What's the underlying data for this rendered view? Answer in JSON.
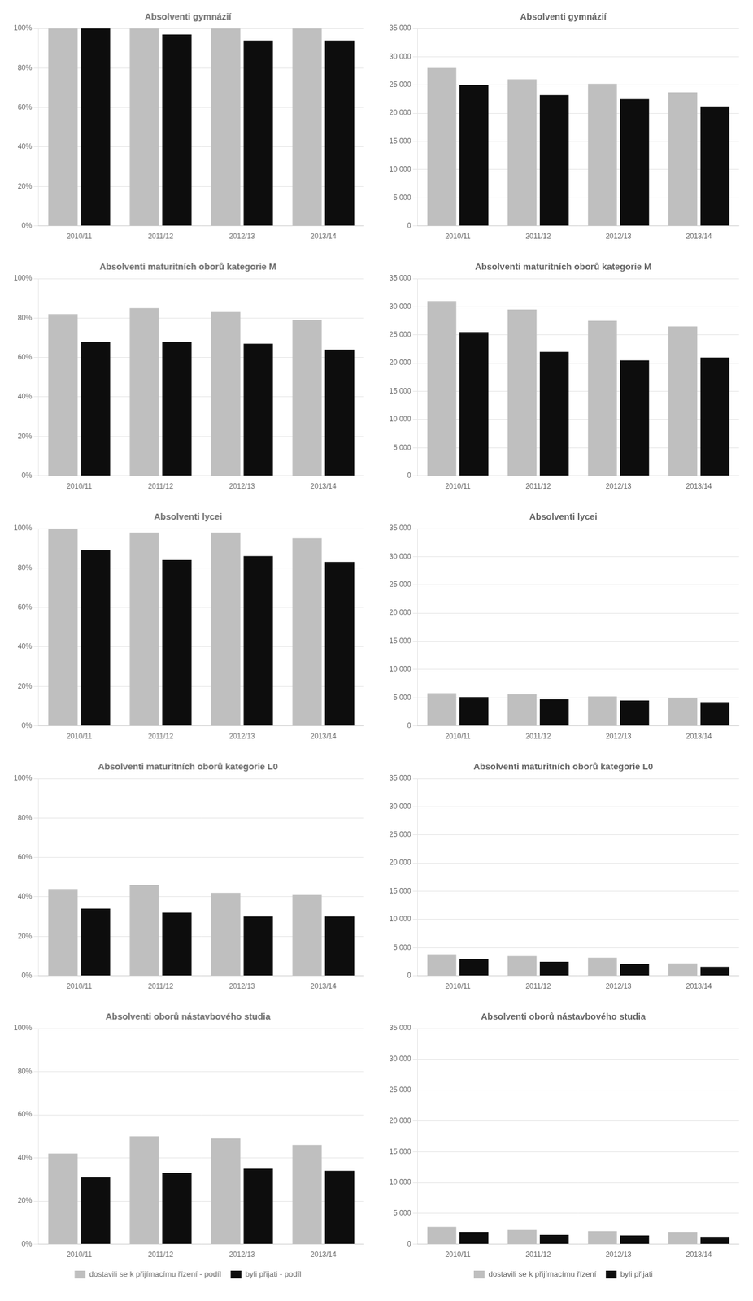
{
  "chart_data": [
    {
      "type": "bar",
      "title": "Absolventi gymnázií",
      "categories": [
        "2010/11",
        "2011/12",
        "2012/13",
        "2013/14"
      ],
      "series": [
        {
          "name": "dostavili se k přijímacímu řízení - podíl",
          "color": "#bfbfbf",
          "values": [
            100,
            100,
            100,
            100
          ]
        },
        {
          "name": "byli přijati - podíl",
          "color": "#0d0d0d",
          "values": [
            100,
            97,
            94,
            94
          ]
        }
      ],
      "ylim": [
        0,
        100
      ],
      "yticks": [
        {
          "value": 0,
          "label": "0%"
        },
        {
          "value": 20,
          "label": "20%"
        },
        {
          "value": 40,
          "label": "40%"
        },
        {
          "value": 60,
          "label": "60%"
        },
        {
          "value": 80,
          "label": "80%"
        },
        {
          "value": 100,
          "label": "100%"
        }
      ],
      "grid": true
    },
    {
      "type": "bar",
      "title": "Absolventi gymnázií",
      "categories": [
        "2010/11",
        "2011/12",
        "2012/13",
        "2013/14"
      ],
      "series": [
        {
          "name": "dostavili se k přijímacímu řízení",
          "color": "#bfbfbf",
          "values": [
            28000,
            26000,
            25200,
            23700
          ]
        },
        {
          "name": "byli přijati",
          "color": "#0d0d0d",
          "values": [
            25000,
            23200,
            22500,
            21200
          ]
        }
      ],
      "ylim": [
        0,
        35000
      ],
      "yticks": [
        0,
        {
          "value": 5000,
          "label": "5 000"
        },
        {
          "value": 10000,
          "label": "10 000"
        },
        {
          "value": 15000,
          "label": "15 000"
        },
        {
          "value": 20000,
          "label": "20 000"
        },
        {
          "value": 25000,
          "label": "25 000"
        },
        {
          "value": 30000,
          "label": "30 000"
        },
        {
          "value": 35000,
          "label": "35 000"
        }
      ],
      "grid": true
    },
    {
      "type": "bar",
      "title": "Absolventi maturitních oborů kategorie M",
      "categories": [
        "2010/11",
        "2011/12",
        "2012/13",
        "2013/14"
      ],
      "series": [
        {
          "name": "dostavili se k přijímacímu řízení - podíl",
          "color": "#bfbfbf",
          "values": [
            82,
            85,
            83,
            79
          ]
        },
        {
          "name": "byli přijati - podíl",
          "color": "#0d0d0d",
          "values": [
            68,
            68,
            67,
            64
          ]
        }
      ],
      "ylim": [
        0,
        100
      ],
      "yticks": [
        {
          "value": 0,
          "label": "0%"
        },
        {
          "value": 20,
          "label": "20%"
        },
        {
          "value": 40,
          "label": "40%"
        },
        {
          "value": 60,
          "label": "60%"
        },
        {
          "value": 80,
          "label": "80%"
        },
        {
          "value": 100,
          "label": "100%"
        }
      ],
      "grid": true
    },
    {
      "type": "bar",
      "title": "Absolventi maturitních oborů kategorie M",
      "categories": [
        "2010/11",
        "2011/12",
        "2012/13",
        "2013/14"
      ],
      "series": [
        {
          "name": "dostavili se k přijímacímu řízení",
          "color": "#bfbfbf",
          "values": [
            31000,
            29500,
            27500,
            26500
          ]
        },
        {
          "name": "byli přijati",
          "color": "#0d0d0d",
          "values": [
            25500,
            22000,
            20500,
            21000
          ]
        }
      ],
      "ylim": [
        0,
        35000
      ],
      "yticks": [
        0,
        {
          "value": 5000,
          "label": "5 000"
        },
        {
          "value": 10000,
          "label": "10 000"
        },
        {
          "value": 15000,
          "label": "15 000"
        },
        {
          "value": 20000,
          "label": "20 000"
        },
        {
          "value": 25000,
          "label": "25 000"
        },
        {
          "value": 30000,
          "label": "30 000"
        },
        {
          "value": 35000,
          "label": "35 000"
        }
      ],
      "grid": true
    },
    {
      "type": "bar",
      "title": "Absolventi lycei",
      "categories": [
        "2010/11",
        "2011/12",
        "2012/13",
        "2013/14"
      ],
      "series": [
        {
          "name": "dostavili se k přijímacímu řízení - podíl",
          "color": "#bfbfbf",
          "values": [
            100,
            98,
            98,
            95
          ]
        },
        {
          "name": "byli přijati - podíl",
          "color": "#0d0d0d",
          "values": [
            89,
            84,
            86,
            83
          ]
        }
      ],
      "ylim": [
        0,
        100
      ],
      "yticks": [
        {
          "value": 0,
          "label": "0%"
        },
        {
          "value": 20,
          "label": "20%"
        },
        {
          "value": 40,
          "label": "40%"
        },
        {
          "value": 60,
          "label": "60%"
        },
        {
          "value": 80,
          "label": "80%"
        },
        {
          "value": 100,
          "label": "100%"
        }
      ],
      "grid": true
    },
    {
      "type": "bar",
      "title": "Absolventi lycei",
      "categories": [
        "2010/11",
        "2011/12",
        "2012/13",
        "2013/14"
      ],
      "series": [
        {
          "name": "dostavili se k přijímacímu řízení",
          "color": "#bfbfbf",
          "values": [
            5800,
            5600,
            5200,
            5000
          ]
        },
        {
          "name": "byli přijati",
          "color": "#0d0d0d",
          "values": [
            5100,
            4700,
            4500,
            4200
          ]
        }
      ],
      "ylim": [
        0,
        35000
      ],
      "yticks": [
        0,
        {
          "value": 5000,
          "label": "5 000"
        },
        {
          "value": 10000,
          "label": "10 000"
        },
        {
          "value": 15000,
          "label": "15 000"
        },
        {
          "value": 20000,
          "label": "20 000"
        },
        {
          "value": 25000,
          "label": "25 000"
        },
        {
          "value": 30000,
          "label": "30 000"
        },
        {
          "value": 35000,
          "label": "35 000"
        }
      ],
      "grid": true
    },
    {
      "type": "bar",
      "title": "Absolventi maturitních oborů kategorie L0",
      "categories": [
        "2010/11",
        "2011/12",
        "2012/13",
        "2013/14"
      ],
      "series": [
        {
          "name": "dostavili se k přijímacímu řízení - podíl",
          "color": "#bfbfbf",
          "values": [
            44,
            46,
            42,
            41
          ]
        },
        {
          "name": "byli přijati - podíl",
          "color": "#0d0d0d",
          "values": [
            34,
            32,
            30,
            30
          ]
        }
      ],
      "ylim": [
        0,
        100
      ],
      "yticks": [
        {
          "value": 0,
          "label": "0%"
        },
        {
          "value": 20,
          "label": "20%"
        },
        {
          "value": 40,
          "label": "40%"
        },
        {
          "value": 60,
          "label": "60%"
        },
        {
          "value": 80,
          "label": "80%"
        },
        {
          "value": 100,
          "label": "100%"
        }
      ],
      "grid": true
    },
    {
      "type": "bar",
      "title": "Absolventi maturitních oborů kategorie L0",
      "categories": [
        "2010/11",
        "2011/12",
        "2012/13",
        "2013/14"
      ],
      "series": [
        {
          "name": "dostavili se k přijímacímu řízení",
          "color": "#bfbfbf",
          "values": [
            3800,
            3500,
            3200,
            2200
          ]
        },
        {
          "name": "byli přijati",
          "color": "#0d0d0d",
          "values": [
            2900,
            2500,
            2100,
            1600
          ]
        }
      ],
      "ylim": [
        0,
        35000
      ],
      "yticks": [
        0,
        {
          "value": 5000,
          "label": "5 000"
        },
        {
          "value": 10000,
          "label": "10 000"
        },
        {
          "value": 15000,
          "label": "15 000"
        },
        {
          "value": 20000,
          "label": "20 000"
        },
        {
          "value": 25000,
          "label": "25 000"
        },
        {
          "value": 30000,
          "label": "30 000"
        },
        {
          "value": 35000,
          "label": "35 000"
        }
      ],
      "grid": true
    },
    {
      "type": "bar",
      "title": "Absolventi oborů nástavbového studia",
      "categories": [
        "2010/11",
        "2011/12",
        "2012/13",
        "2013/14"
      ],
      "series": [
        {
          "name": "dostavili se k přijímacímu řízení - podíl",
          "color": "#bfbfbf",
          "values": [
            42,
            50,
            49,
            46
          ]
        },
        {
          "name": "byli přijati - podíl",
          "color": "#0d0d0d",
          "values": [
            31,
            33,
            35,
            34
          ]
        }
      ],
      "ylim": [
        0,
        100
      ],
      "yticks": [
        {
          "value": 0,
          "label": "0%"
        },
        {
          "value": 20,
          "label": "20%"
        },
        {
          "value": 40,
          "label": "40%"
        },
        {
          "value": 60,
          "label": "60%"
        },
        {
          "value": 80,
          "label": "80%"
        },
        {
          "value": 100,
          "label": "100%"
        }
      ],
      "grid": true,
      "legend": "bottom"
    },
    {
      "type": "bar",
      "title": "Absolventi oborů nástavbového studia",
      "categories": [
        "2010/11",
        "2011/12",
        "2012/13",
        "2013/14"
      ],
      "series": [
        {
          "name": "dostavili se k přijímacímu řízení",
          "color": "#bfbfbf",
          "values": [
            2800,
            2300,
            2100,
            2000
          ]
        },
        {
          "name": "byli přijati",
          "color": "#0d0d0d",
          "values": [
            2000,
            1500,
            1400,
            1200
          ]
        }
      ],
      "ylim": [
        0,
        35000
      ],
      "yticks": [
        0,
        {
          "value": 5000,
          "label": "5 000"
        },
        {
          "value": 10000,
          "label": "10 000"
        },
        {
          "value": 15000,
          "label": "15 000"
        },
        {
          "value": 20000,
          "label": "20 000"
        },
        {
          "value": 25000,
          "label": "25 000"
        },
        {
          "value": 30000,
          "label": "30 000"
        },
        {
          "value": 35000,
          "label": "35 000"
        }
      ],
      "grid": true,
      "legend": "bottom"
    }
  ]
}
